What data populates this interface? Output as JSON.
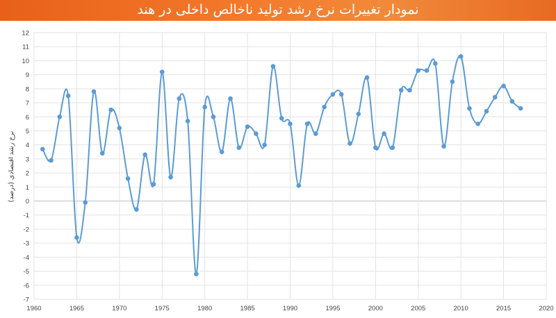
{
  "chart_data": {
    "type": "line",
    "title": "نمودار تغییرات نرخ رشد تولید ناخالص داخلی در  هند",
    "ylabel": "نرخ رشد اقتصادی (درصد)",
    "xlim": [
      1960,
      2020
    ],
    "ylim": [
      -7,
      12
    ],
    "x_ticks": [
      1960,
      1965,
      1970,
      1975,
      1980,
      1985,
      1990,
      1995,
      2000,
      2005,
      2010,
      2015,
      2020
    ],
    "y_ticks": [
      -7,
      -6,
      -5,
      -4,
      -3,
      -2,
      -1,
      0,
      1,
      2,
      3,
      4,
      5,
      6,
      7,
      8,
      9,
      10,
      11,
      12
    ],
    "grid": true,
    "color": "#5b9bd5",
    "series": [
      {
        "x": [
          1961,
          1962,
          1963,
          1964,
          1965,
          1966,
          1967,
          1968,
          1969,
          1970,
          1971,
          1972,
          1973,
          1974,
          1975,
          1976,
          1977,
          1978,
          1979,
          1980,
          1981,
          1982,
          1983,
          1984,
          1985,
          1986,
          1987,
          1988,
          1989,
          1990,
          1991,
          1992,
          1993,
          1994,
          1995,
          1996,
          1997,
          1998,
          1999,
          2000,
          2001,
          2002,
          2003,
          2004,
          2005,
          2006,
          2007,
          2008,
          2009,
          2010,
          2011,
          2012,
          2013,
          2014,
          2015,
          2016,
          2017
        ],
        "y": [
          3.7,
          2.9,
          6.0,
          7.5,
          -2.6,
          -0.1,
          7.8,
          3.4,
          6.5,
          5.2,
          1.6,
          -0.6,
          3.3,
          1.2,
          9.2,
          1.7,
          7.3,
          5.7,
          -5.2,
          6.7,
          6.0,
          3.5,
          7.3,
          3.8,
          5.3,
          4.8,
          4.0,
          9.6,
          5.9,
          5.5,
          1.1,
          5.5,
          4.8,
          6.7,
          7.6,
          7.6,
          4.1,
          6.2,
          8.8,
          3.8,
          4.8,
          3.8,
          7.9,
          7.9,
          9.3,
          9.3,
          9.8,
          3.9,
          8.5,
          10.3,
          6.6,
          5.5,
          6.4,
          7.4,
          8.2,
          7.1,
          6.6
        ]
      }
    ]
  }
}
